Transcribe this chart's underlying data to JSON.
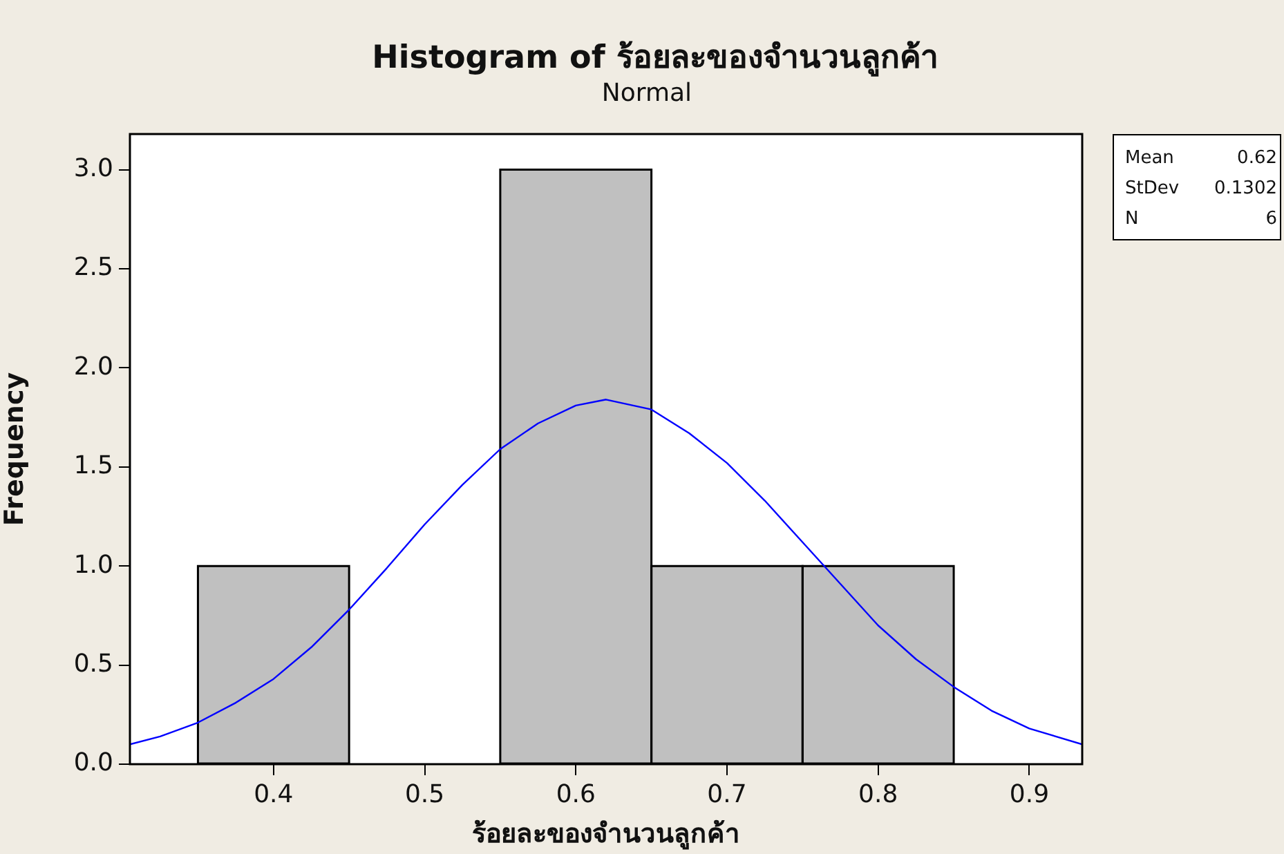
{
  "chart_data": {
    "type": "histogram",
    "title": "Histogram of ร้อยละของจำนวนลูกค้า",
    "subtitle": "Normal",
    "xlabel": "ร้อยละของจำนวนลูกค้า",
    "ylabel": "Frequency",
    "annotations": [
      "Mean 0.62",
      "StDev 0.1302",
      "N 6"
    ],
    "bins": [
      0.35,
      0.45,
      0.55,
      0.65,
      0.75,
      0.85
    ],
    "series": [
      {
        "color": "#c0c0c0",
        "values": [
          1,
          0,
          3,
          1,
          1
        ]
      },
      {
        "type": "line",
        "color": "#0000ff",
        "marker": "none",
        "x": [
          0.305,
          0.325,
          0.35,
          0.375,
          0.4,
          0.425,
          0.45,
          0.475,
          0.5,
          0.525,
          0.55,
          0.575,
          0.6,
          0.62,
          0.65,
          0.675,
          0.7,
          0.725,
          0.75,
          0.775,
          0.8,
          0.825,
          0.85,
          0.875,
          0.9,
          0.935
        ],
        "values": [
          0.1,
          0.14,
          0.21,
          0.31,
          0.43,
          0.59,
          0.78,
          0.99,
          1.21,
          1.41,
          1.59,
          1.72,
          1.81,
          1.84,
          1.79,
          1.67,
          1.52,
          1.33,
          1.12,
          0.91,
          0.7,
          0.53,
          0.39,
          0.27,
          0.18,
          0.1
        ]
      }
    ],
    "xlim": [
      0.305,
      0.935
    ],
    "xticks": [
      0.4,
      0.5,
      0.6,
      0.7,
      0.8,
      0.9
    ],
    "ylim": [
      0,
      3.18
    ],
    "yticks": [
      {
        "value": 0,
        "label": "0.0"
      },
      0.5,
      {
        "value": 1,
        "label": "1.0"
      },
      1.5,
      {
        "value": 2,
        "label": "2.0"
      },
      2.5,
      {
        "value": 3,
        "label": "3.0"
      }
    ]
  }
}
